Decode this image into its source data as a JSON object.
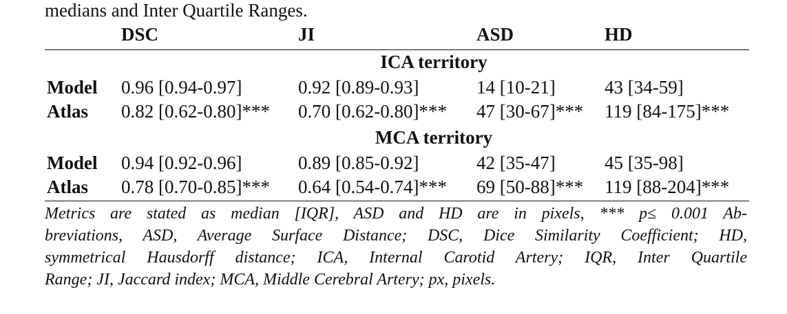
{
  "intro": "medians and Inter Quartile Ranges.",
  "table": {
    "columns": [
      "DSC",
      "JI",
      "ASD",
      "HD"
    ],
    "sections": [
      {
        "title": "ICA territory",
        "rows": [
          {
            "label": "Model",
            "cells": [
              "0.96 [0.94-0.97]",
              "0.92 [0.89-0.93]",
              "14 [10-21]",
              "43 [34-59]"
            ]
          },
          {
            "label": "Atlas",
            "cells": [
              "0.82 [0.62-0.80]***",
              "0.70 [0.62-0.80]***",
              "47 [30-67]***",
              "119 [84-175]***"
            ]
          }
        ]
      },
      {
        "title": "MCA territory",
        "rows": [
          {
            "label": "Model",
            "cells": [
              "0.94 [0.92-0.96]",
              "0.89 [0.85-0.92]",
              "42 [35-47]",
              "45 [35-98]"
            ]
          },
          {
            "label": "Atlas",
            "cells": [
              "0.78 [0.70-0.85]***",
              "0.64 [0.54-0.74]***",
              "69 [50-88]***",
              "119 [88-204]***"
            ]
          }
        ]
      }
    ]
  },
  "footnote": [
    "Metrics are stated as median [IQR], ASD and HD are in pixels, *** p≤ 0.001 Ab-",
    "breviations, ASD, Average Surface Distance; DSC, Dice Similarity Coefficient; HD,",
    "symmetrical Hausdorff distance; ICA, Internal Carotid Artery; IQR, Inter Quartile",
    "Range; JI, Jaccard index; MCA, Middle Cerebral Artery; px, pixels."
  ]
}
